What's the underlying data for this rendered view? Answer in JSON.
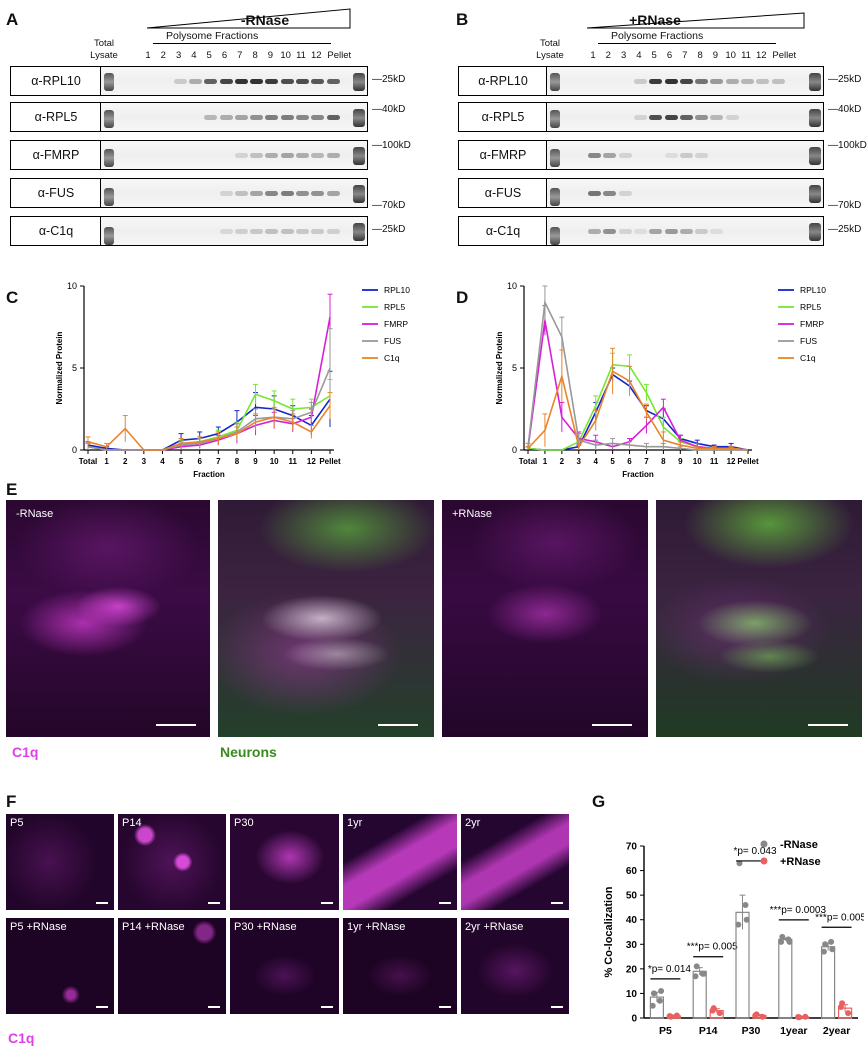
{
  "panels": {
    "A": "A",
    "B": "B",
    "C": "C",
    "D": "D",
    "E": "E",
    "F": "F",
    "G": "G"
  },
  "blots": [
    {
      "title": "-RNase",
      "polysome_label": "Polysome Fractions",
      "total_label": "Total",
      "lysate_label": "Lysate",
      "fractions": [
        "1",
        "2",
        "3",
        "4",
        "5",
        "6",
        "7",
        "8",
        "9",
        "10",
        "11",
        "12"
      ],
      "pellet_label": "Pellet",
      "rows": [
        {
          "antibody": "α-RPL10",
          "mw": "25kD"
        },
        {
          "antibody": "α-RPL5",
          "mw": "40kD"
        },
        {
          "antibody": "α-FMRP",
          "mw": "100kD"
        },
        {
          "antibody": "α-FUS",
          "mw": "70kD"
        },
        {
          "antibody": "α-C1q",
          "mw": "25kD"
        }
      ]
    },
    {
      "title": "+RNase",
      "polysome_label": "Polysome Fractions",
      "total_label": "Total",
      "lysate_label": "Lysate",
      "fractions": [
        "1",
        "2",
        "3",
        "4",
        "5",
        "6",
        "7",
        "8",
        "9",
        "10",
        "11",
        "12"
      ],
      "pellet_label": "Pellet",
      "rows": [
        {
          "antibody": "α-RPL10",
          "mw": "25kD"
        },
        {
          "antibody": "α-RPL5",
          "mw": "40kD"
        },
        {
          "antibody": "α-FMRP",
          "mw": "100kD"
        },
        {
          "antibody": "α-FUS",
          "mw": "70kD"
        },
        {
          "antibody": "α-C1q",
          "mw": "25kD"
        }
      ]
    }
  ],
  "chart_data": [
    {
      "type": "line",
      "panel": "C",
      "ylabel": "Normalized Protein",
      "xlabel": "Fraction",
      "categories": [
        "Total",
        "1",
        "2",
        "3",
        "4",
        "5",
        "6",
        "7",
        "8",
        "9",
        "10",
        "11",
        "12",
        "Pellet"
      ],
      "ylim": [
        0,
        10
      ],
      "yticks": [
        0,
        5,
        10
      ],
      "legend_position": "top-right",
      "series": [
        {
          "name": "RPL10",
          "color": "#1426c8",
          "values": [
            0.3,
            0.1,
            0,
            0,
            0,
            0.6,
            0.7,
            1.0,
            1.7,
            2.6,
            2.5,
            2.1,
            1.5,
            3.1
          ]
        },
        {
          "name": "RPL5",
          "color": "#78e632",
          "values": [
            0.2,
            0,
            0,
            0,
            0,
            0.3,
            0.5,
            0.8,
            1.2,
            3.4,
            3.0,
            2.5,
            2.6,
            3.3
          ]
        },
        {
          "name": "FMRP",
          "color": "#d61fd9",
          "values": [
            0.2,
            0,
            0,
            0,
            0,
            0.2,
            0.3,
            0.6,
            1.0,
            1.5,
            1.8,
            1.6,
            2.0,
            8.1
          ]
        },
        {
          "name": "FUS",
          "color": "#999999",
          "values": [
            0.2,
            0,
            0,
            0,
            0,
            0.3,
            0.4,
            0.7,
            1.1,
            1.9,
            2.0,
            1.9,
            2.3,
            5.0
          ]
        },
        {
          "name": "C1q",
          "color": "#e8852a",
          "values": [
            0.5,
            0.2,
            1.3,
            0,
            0,
            0.4,
            0.5,
            0.7,
            1.0,
            1.7,
            2.0,
            1.7,
            1.1,
            2.7
          ]
        }
      ],
      "errors": [
        [
          0.2,
          0.1,
          0,
          0,
          0,
          0.4,
          0.4,
          0.4,
          0.7,
          0.9,
          0.8,
          0.6,
          0.6,
          1.7
        ],
        [
          0.2,
          0,
          0,
          0,
          0,
          0.3,
          0.3,
          0.4,
          0.5,
          0.6,
          0.6,
          0.6,
          0.5,
          1.0
        ],
        [
          0.2,
          0,
          0,
          0,
          0,
          0.2,
          0.2,
          0.3,
          0.6,
          0.6,
          0.5,
          0.5,
          0.5,
          1.4
        ],
        [
          0.2,
          0,
          0,
          0,
          0,
          0.2,
          0.3,
          0.4,
          0.5,
          0.6,
          0.5,
          0.5,
          0.6,
          2.4
        ],
        [
          0.3,
          0.2,
          0.8,
          0,
          0,
          0.3,
          0.3,
          0.4,
          0.4,
          0.5,
          0.6,
          0.5,
          0.4,
          0.8
        ]
      ]
    },
    {
      "type": "line",
      "panel": "D",
      "ylabel": "Normalized Protein",
      "xlabel": "Fraction",
      "categories": [
        "Total",
        "1",
        "2",
        "3",
        "4",
        "5",
        "6",
        "7",
        "8",
        "9",
        "10",
        "11",
        "12",
        "Pellet"
      ],
      "ylim": [
        0,
        10
      ],
      "yticks": [
        0,
        5,
        10
      ],
      "legend_position": "top-right",
      "series": [
        {
          "name": "RPL10",
          "color": "#1426c8",
          "values": [
            0.1,
            0,
            0,
            0.2,
            2.3,
            4.6,
            3.9,
            2.4,
            1.9,
            0.7,
            0.4,
            0.2,
            0.2,
            0
          ]
        },
        {
          "name": "RPL5",
          "color": "#78e632",
          "values": [
            0.1,
            0,
            0,
            0.5,
            2.7,
            5.2,
            5.1,
            3.5,
            1.4,
            0.5,
            0.2,
            0.1,
            0.1,
            0
          ]
        },
        {
          "name": "FMRP",
          "color": "#d61fd9",
          "values": [
            0.1,
            7.9,
            2.0,
            0.7,
            0.5,
            0.2,
            0.5,
            1.5,
            2.6,
            0.6,
            0.2,
            0.1,
            0.1,
            0
          ]
        },
        {
          "name": "FUS",
          "color": "#999999",
          "values": [
            0.2,
            9.0,
            6.9,
            0.6,
            0.3,
            0.4,
            0.3,
            0.2,
            0.2,
            0.1,
            0,
            0,
            0,
            0
          ]
        },
        {
          "name": "C1q",
          "color": "#e8852a",
          "values": [
            0.1,
            1.2,
            4.5,
            0.2,
            1.8,
            4.8,
            4.2,
            2.3,
            0.6,
            0.3,
            0.1,
            0.1,
            0.1,
            0
          ]
        }
      ],
      "errors": [
        [
          0.1,
          0,
          0,
          0.1,
          0.6,
          0.4,
          0.3,
          0.3,
          0.6,
          0.2,
          0.2,
          0.1,
          0.2,
          0
        ],
        [
          0.1,
          0,
          0,
          0.2,
          0.6,
          0.7,
          0.7,
          0.5,
          0.6,
          0.2,
          0.2,
          0.1,
          0.1,
          0
        ],
        [
          0.1,
          0.9,
          0.9,
          0.4,
          0.4,
          0.2,
          0.2,
          0.5,
          0.5,
          0.3,
          0.2,
          0.1,
          0.1,
          0
        ],
        [
          0.2,
          1.0,
          1.2,
          0.4,
          0.3,
          0.3,
          0.2,
          0.2,
          0.2,
          0.1,
          0,
          0,
          0,
          0
        ],
        [
          0.1,
          1.0,
          1.6,
          0.2,
          0.6,
          1.4,
          0.9,
          0.5,
          0.5,
          0.2,
          0.1,
          0.1,
          0.1,
          0
        ]
      ]
    },
    {
      "type": "bar",
      "panel": "G",
      "ylabel": "% Co-localization",
      "categories": [
        "P5",
        "P14",
        "P30",
        "1year",
        "2year"
      ],
      "ylim": [
        0,
        70
      ],
      "yticks": [
        0,
        10,
        20,
        30,
        40,
        50,
        60,
        70
      ],
      "legend_position": "top-right",
      "series": [
        {
          "name": "-RNase",
          "color": "#888888",
          "values": [
            8.5,
            19,
            43,
            32,
            29
          ],
          "sem": [
            2,
            1.5,
            7,
            0.5,
            1.5
          ],
          "points": [
            [
              10,
              7,
              5,
              11
            ],
            [
              21,
              18,
              17,
              18
            ],
            [
              63,
              46,
              38,
              40
            ],
            [
              33,
              32,
              31,
              31
            ],
            [
              30,
              31,
              27,
              28
            ]
          ]
        },
        {
          "name": "+RNase",
          "color": "#e8615f",
          "values": [
            0.8,
            3,
            1,
            0.4,
            4
          ],
          "sem": [
            0.4,
            0.8,
            0.4,
            0.2,
            1.4
          ],
          "points": [
            [
              0.5,
              1,
              0.8
            ],
            [
              4,
              2,
              3
            ],
            [
              1.5,
              0.5,
              1
            ],
            [
              0.3,
              0.5,
              0.4
            ],
            [
              6,
              2,
              4.5
            ]
          ]
        }
      ],
      "significance": [
        "*p= 0.014",
        "***p= 0.005",
        "*p= 0.043",
        "***p= 0.0003",
        "***p= 0.005"
      ]
    }
  ],
  "panel_e": {
    "images": [
      {
        "label": "-RNase",
        "channels": "magenta"
      },
      {
        "label": "",
        "channels": "merge"
      },
      {
        "label": "+RNase",
        "channels": "magenta"
      },
      {
        "label": "",
        "channels": "merge"
      }
    ],
    "c1q_label": "C1q",
    "neurons_label": "Neurons",
    "colors": {
      "c1q": "#e040e8",
      "neurons": "#3a8a1e"
    }
  },
  "panel_f": {
    "top": [
      "P5",
      "P14",
      "P30",
      "1yr",
      "2yr"
    ],
    "bottom": [
      "P5 +RNase",
      "P14 +RNase",
      "P30 +RNase",
      "1yr +RNase",
      "2yr +RNase"
    ],
    "c1q_label": "C1q"
  }
}
